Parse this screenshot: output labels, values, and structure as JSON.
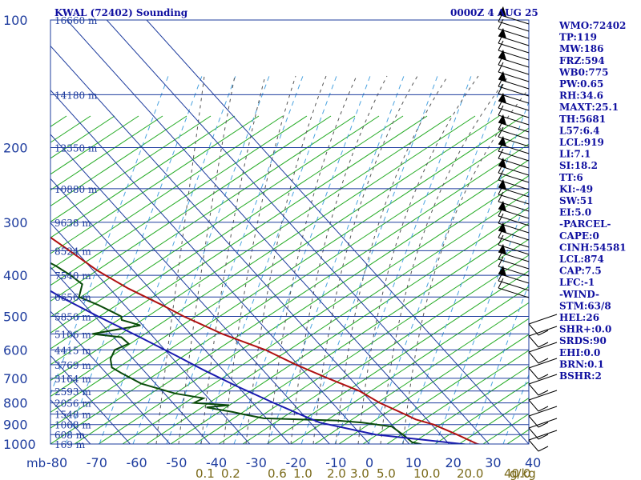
{
  "header": {
    "title": "KWAL (72402) Sounding",
    "time": "0000Z  4 AUG 25"
  },
  "chart_data": {
    "type": "line",
    "subtype": "skew-t log-p sounding",
    "pressure_axis": {
      "unit_label": "mb",
      "ticks": [
        100,
        200,
        300,
        400,
        500,
        600,
        700,
        800,
        900,
        1000
      ],
      "range": [
        100,
        1000
      ],
      "scale": "log"
    },
    "temperature_axis": {
      "ticks": [
        -80,
        -70,
        -60,
        -50,
        -40,
        -30,
        -20,
        -10,
        0,
        10,
        20,
        30,
        40
      ],
      "range": [
        -80,
        40
      ],
      "unit": "C"
    },
    "mixing_ratio_axis": {
      "ticks": [
        "0.1",
        "0.2",
        "0.6",
        "1.0",
        "2.0",
        "3.0",
        "5.0",
        "10.0",
        "20.0",
        "40.0"
      ],
      "unit_label": "g/kg"
    },
    "height_labels": [
      {
        "p": 100,
        "text": "16660 m"
      },
      {
        "p": 150,
        "text": "14180 m"
      },
      {
        "p": 200,
        "text": "12350 m"
      },
      {
        "p": 250,
        "text": "10880 m"
      },
      {
        "p": 300,
        "text": "9638 m"
      },
      {
        "p": 350,
        "text": "8524 m"
      },
      {
        "p": 400,
        "text": "7540 m"
      },
      {
        "p": 450,
        "text": "6656 m"
      },
      {
        "p": 500,
        "text": "5850 m"
      },
      {
        "p": 550,
        "text": "5106 m"
      },
      {
        "p": 600,
        "text": "4415 m"
      },
      {
        "p": 650,
        "text": "3769 m"
      },
      {
        "p": 700,
        "text": "3164 m"
      },
      {
        "p": 750,
        "text": "2593 m"
      },
      {
        "p": 800,
        "text": "2056 m"
      },
      {
        "p": 850,
        "text": "1548 m"
      },
      {
        "p": 900,
        "text": "1068 m"
      },
      {
        "p": 950,
        "text": "608 m"
      },
      {
        "p": 1000,
        "text": "169 m"
      }
    ],
    "series": [
      {
        "name": "",
        "color": "#b01010",
        "points": [
          [
            -53.8,
            100
          ],
          [
            -53.4,
            110
          ],
          [
            -52.8,
            120
          ],
          [
            -52.1,
            130
          ],
          [
            -51.3,
            140
          ],
          [
            -50.5,
            150
          ],
          [
            -49.1,
            160
          ],
          [
            -46.8,
            175
          ],
          [
            -45.6,
            190
          ],
          [
            -45.4,
            200
          ],
          [
            -44.2,
            210
          ],
          [
            -43.1,
            230
          ],
          [
            -40.3,
            250
          ],
          [
            -37.8,
            275
          ],
          [
            -35.3,
            300
          ],
          [
            -31.5,
            350
          ],
          [
            -29,
            390
          ],
          [
            -25.3,
            430
          ],
          [
            -20.6,
            470
          ],
          [
            -17.7,
            500
          ],
          [
            -12,
            550
          ],
          [
            -4.8,
            600
          ],
          [
            -0.5,
            650
          ],
          [
            4.5,
            700
          ],
          [
            9.5,
            750
          ],
          [
            11.9,
            800
          ],
          [
            15.6,
            850
          ],
          [
            17.2,
            875
          ],
          [
            20.5,
            900
          ],
          [
            24.1,
            950
          ],
          [
            27.1,
            1000
          ],
          [
            29.1,
            1010
          ]
        ]
      },
      {
        "name": "",
        "color": "#0a4a0a",
        "points": [
          [
            -75.8,
            130
          ],
          [
            -71.3,
            150
          ],
          [
            -66.6,
            170
          ],
          [
            -62.2,
            190
          ],
          [
            -60.6,
            200
          ],
          [
            -58.4,
            220
          ],
          [
            -54.9,
            240
          ],
          [
            -52.3,
            260
          ],
          [
            -50.3,
            280
          ],
          [
            -48.8,
            300
          ],
          [
            -45,
            330
          ],
          [
            -42.2,
            350
          ],
          [
            -38.4,
            380
          ],
          [
            -36.8,
            400
          ],
          [
            -35.9,
            420
          ],
          [
            -39.6,
            450
          ],
          [
            -36.6,
            470
          ],
          [
            -34.4,
            490
          ],
          [
            -33.4,
            500
          ],
          [
            -34.1,
            510
          ],
          [
            -30.6,
            525
          ],
          [
            -44.6,
            550
          ],
          [
            -38.1,
            560
          ],
          [
            -37.7,
            580
          ],
          [
            -42.6,
            600
          ],
          [
            -45.7,
            630
          ],
          [
            -47.3,
            660
          ],
          [
            -46.2,
            680
          ],
          [
            -43.6,
            720
          ],
          [
            -37.3,
            760
          ],
          [
            -31.3,
            780
          ],
          [
            -34.7,
            800
          ],
          [
            -26.4,
            810
          ],
          [
            -32.6,
            820
          ],
          [
            -27.1,
            840
          ],
          [
            -25.1,
            850
          ],
          [
            -20.7,
            870
          ],
          [
            -2.9,
            880
          ],
          [
            3.1,
            890
          ],
          [
            9.6,
            910
          ],
          [
            10.3,
            940
          ],
          [
            10.7,
            960
          ],
          [
            11.1,
            990
          ],
          [
            14.5,
            1010
          ]
        ]
      },
      {
        "name": "",
        "color": "#1a1ab0",
        "points": [
          [
            -84.9,
            170
          ],
          [
            -68,
            250
          ],
          [
            -56.2,
            330
          ],
          [
            -48.5,
            400
          ],
          [
            -44.2,
            450
          ],
          [
            -39.2,
            500
          ],
          [
            -33.4,
            560
          ],
          [
            -28.4,
            620
          ],
          [
            -24.8,
            670
          ],
          [
            -20.2,
            730
          ],
          [
            -14.7,
            800
          ],
          [
            -10.8,
            850
          ],
          [
            -7.6,
            890
          ],
          [
            3.7,
            950
          ],
          [
            27.1,
            1010
          ]
        ]
      }
    ]
  },
  "indices": [
    "WMO:72402",
    "TP:119",
    "MW:186",
    "FRZ:594",
    "WB0:775",
    "PW:0.65",
    "RH:34.6",
    "MAXT:25.1",
    "TH:5681",
    "L57:6.4",
    "LCL:919",
    "LI:7.1",
    "SI:18.2",
    "TT:6",
    "KI:-49",
    "SW:51",
    "EI:5.0",
    "-PARCEL-",
    "CAPE:0",
    "CINH:54581",
    "LCL:874",
    "CAP:7.5",
    "LFC:-1",
    "-WIND-",
    "STM:63/8",
    "HEL:26",
    "SHR+:0.0",
    "SRDS:90",
    "EHI:0.0",
    "BRN:0.1",
    "BSHR:2"
  ],
  "colors": {
    "isobar": "#1e3c9e",
    "isotherm": "#1e3c9e",
    "dry_adiabat": "#22aa22",
    "moist_adiabat": "#555555",
    "mixing_ratio": "#4aa3df",
    "wind_barb": "#000000"
  }
}
